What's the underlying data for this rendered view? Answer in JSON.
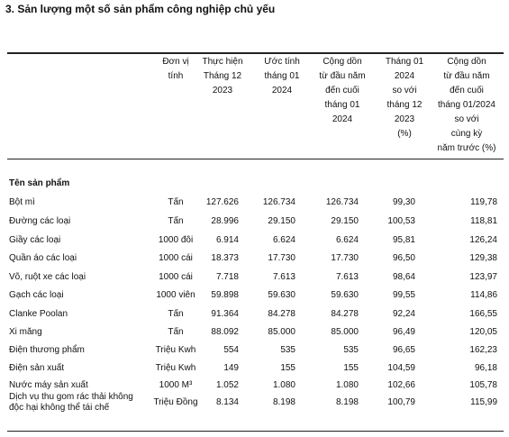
{
  "title": "3. Sản lượng một số sản phẩm công nghiệp chủ yếu",
  "table": {
    "headers": [
      [
        "Đơn vị",
        "tính"
      ],
      [
        "Thực hiện",
        "Tháng 12",
        "2023"
      ],
      [
        "Ước tính",
        "tháng 01",
        "2024"
      ],
      [
        "Cộng dồn",
        "từ đầu năm",
        "đến cuối",
        "tháng 01",
        "2024"
      ],
      [
        "Tháng 01",
        "2024",
        "so với",
        "tháng 12",
        "2023",
        "(%)"
      ],
      [
        "Cộng dồn",
        "từ đầu năm",
        "đến cuối",
        "tháng 01/2024",
        "so với",
        "cùng kỳ",
        "năm trước (%)"
      ]
    ],
    "section": "Tên sản phẩm",
    "rows": [
      {
        "name": "Bột mì",
        "unit": "Tấn",
        "values": [
          "127.626",
          "126.734",
          "126.734",
          "99,30",
          "119,78"
        ]
      },
      {
        "name": "Đường các loại",
        "unit": "Tấn",
        "values": [
          "28.996",
          "29.150",
          "29.150",
          "100,53",
          "118,81"
        ]
      },
      {
        "name": "Giầy các loại",
        "unit": "1000 đôi",
        "values": [
          "6.914",
          "6.624",
          "6.624",
          "95,81",
          "126,24"
        ]
      },
      {
        "name": "Quần áo các loại",
        "unit": "1000 cái",
        "values": [
          "18.373",
          "17.730",
          "17.730",
          "96,50",
          "129,38"
        ]
      },
      {
        "name": "Võ, ruột xe các loại",
        "unit": "1000 cái",
        "values": [
          "7.718",
          "7.613",
          "7.613",
          "98,64",
          "123,97"
        ]
      },
      {
        "name": "Gạch các loại",
        "unit": "1000 viên",
        "values": [
          "59.898",
          "59.630",
          "59.630",
          "99,55",
          "114,86"
        ]
      },
      {
        "name": "Clanke Poolan",
        "unit": "Tấn",
        "values": [
          "91.364",
          "84.278",
          "84.278",
          "92,24",
          "166,55"
        ]
      },
      {
        "name": "Xi măng",
        "unit": "Tấn",
        "values": [
          "88.092",
          "85.000",
          "85.000",
          "96,49",
          "120,05"
        ]
      },
      {
        "name": "Điện thương phẩm",
        "unit": "Triệu Kwh",
        "values": [
          "554",
          "535",
          "535",
          "96,65",
          "162,23"
        ]
      },
      {
        "name": "Điện sản xuất",
        "unit": "Triệu Kwh",
        "values": [
          "149",
          "155",
          "155",
          "104,59",
          "96,18"
        ]
      },
      {
        "name": "Nước máy sản xuất",
        "unit": "1000 M³",
        "values": [
          "1.052",
          "1.080",
          "1.080",
          "102,66",
          "105,78"
        ]
      },
      {
        "name": [
          "Dịch vụ thu gom rác thải không",
          "độc hại không thể tái chế"
        ],
        "unit": "Triệu Đồng",
        "values": [
          "8.134",
          "8.198",
          "8.198",
          "100,79",
          "115,99"
        ]
      }
    ]
  }
}
